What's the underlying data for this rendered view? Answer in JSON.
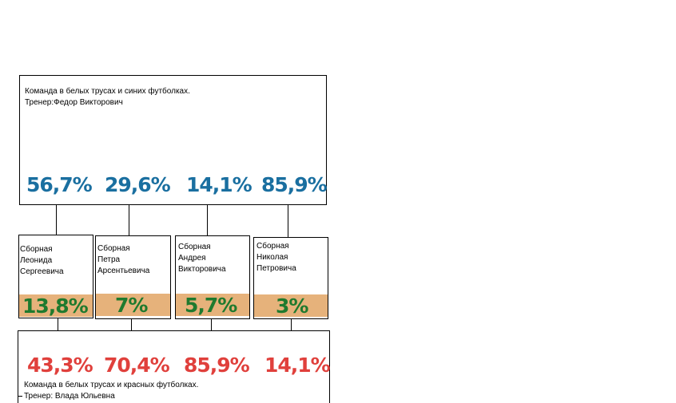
{
  "top": {
    "line1": "Команда в белых трусах и синих футболках.",
    "line2": "Тренер:Федор Викторович",
    "values": [
      "56,7%",
      "29,6%",
      "14,1%",
      "85,9%"
    ]
  },
  "groups": [
    {
      "lines": [
        "Сборная",
        "Леонида",
        "Сергеевича"
      ],
      "value": "13,8%"
    },
    {
      "lines": [
        "Сборная",
        "Петра",
        "Арсентьевича"
      ],
      "value": "7%"
    },
    {
      "lines": [
        "Сборная",
        "Андрея",
        "Викторовича"
      ],
      "value": "5,7%"
    },
    {
      "lines": [
        "Сборная",
        "Николая",
        "Петровича"
      ],
      "value": "3%"
    }
  ],
  "bottom": {
    "values": [
      "43,3%",
      "70,4%",
      "85,9%",
      "14,1%"
    ],
    "line1": "Команда в белых трусах и красных футболках.",
    "line2": "Тренер: Влада Юльевна"
  },
  "colors": {
    "blue": "#1a6fa0",
    "red": "#e0403c",
    "green": "#1f7a2e",
    "band": "#e6b27b"
  }
}
